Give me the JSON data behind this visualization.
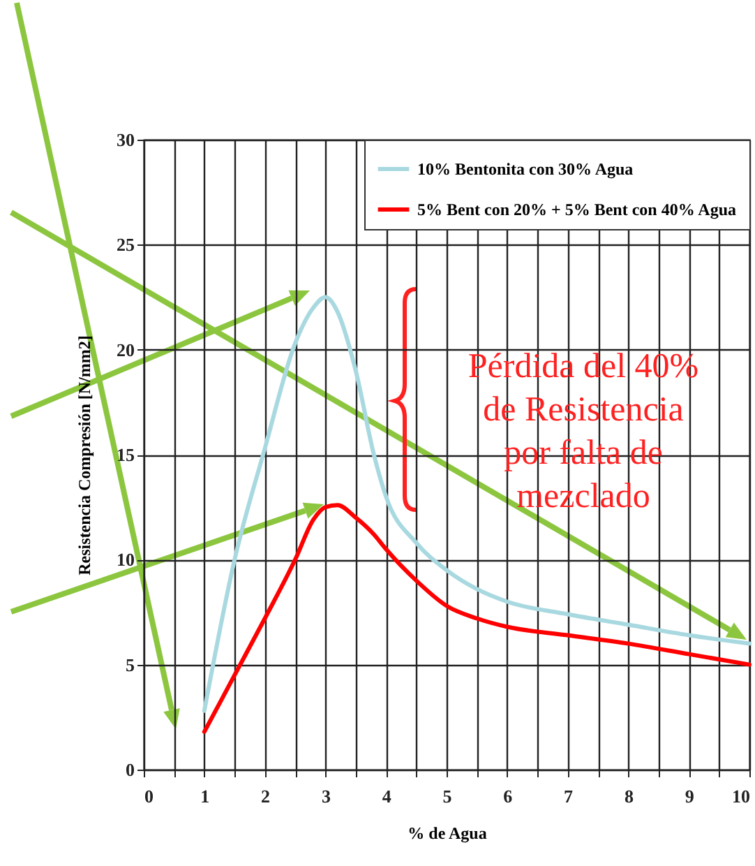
{
  "chart_data": {
    "type": "line",
    "xlabel": "% de Agua",
    "ylabel": "Resistencia Compresión [N/mm2]",
    "x": [
      1,
      1.5,
      2,
      2.5,
      2.8,
      3,
      3.2,
      3.5,
      3.8,
      4,
      4.5,
      5,
      5.5,
      6,
      7,
      8,
      9,
      10
    ],
    "series": [
      {
        "name": "10% Bentonita con 30% Agua",
        "color": "#a9d9e0",
        "values": [
          2.8,
          10,
          15.3,
          20.3,
          22,
          22.5,
          21.8,
          19,
          15,
          13,
          10.8,
          9.5,
          8.6,
          8,
          7.4,
          6.9,
          6.4,
          6
        ]
      },
      {
        "name": "5% Bent con 20% + 5% Bent con 40% Agua",
        "color": "#ff0000",
        "values": [
          1.8,
          4.5,
          7.2,
          10,
          11.9,
          12.5,
          12.6,
          12,
          11.2,
          10.5,
          9,
          7.8,
          7.2,
          6.8,
          6.4,
          6,
          5.5,
          5
        ]
      }
    ],
    "xlim": [
      0,
      10
    ],
    "xticks": [
      0,
      {
        "value": 0.5,
        "label": null
      },
      1,
      {
        "value": 1.5,
        "label": null
      },
      2,
      {
        "value": 2.5,
        "label": null
      },
      3,
      {
        "value": 3.5,
        "label": null
      },
      4,
      {
        "value": 4.5,
        "label": null
      },
      5,
      {
        "value": 5.5,
        "label": null
      },
      6,
      {
        "value": 6.5,
        "label": null
      },
      7,
      {
        "value": 7.5,
        "label": null
      },
      8,
      {
        "value": 8.5,
        "label": null
      },
      9,
      {
        "value": 9.5,
        "label": null
      },
      10
    ],
    "ylim": [
      0,
      30
    ],
    "yticks": [
      0,
      5,
      10,
      15,
      20,
      25,
      30
    ],
    "grid": true,
    "legend": "top right",
    "marker": "none",
    "line_style": "solid",
    "annotations": [
      "Pérdida del 40% de Resistencia por falta de mezclado"
    ]
  }
}
